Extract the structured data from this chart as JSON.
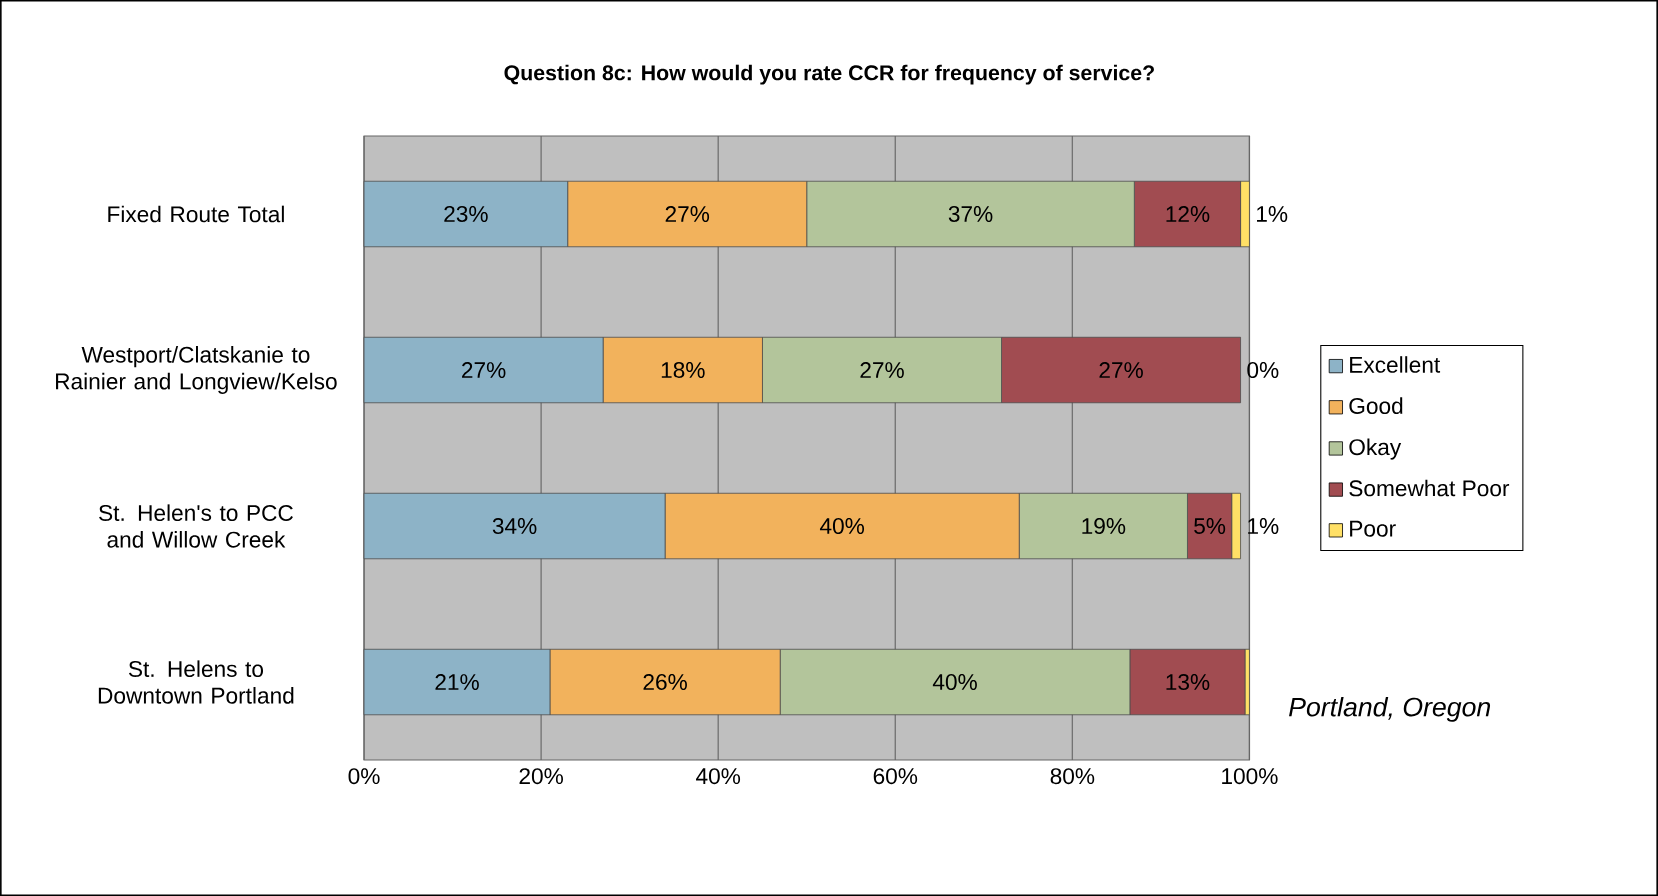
{
  "chart_data": {
    "type": "bar",
    "orientation": "horizontal",
    "stacked": true,
    "title": "Question 8c: How would you rate CCR for frequency of service?",
    "categories": [
      "Fixed Route Total",
      "Westport/Clatskanie to Rainier and Longview/Kelso",
      "St. Helen's to PCC and Willow Creek",
      "St. Helens to Downtown Portland"
    ],
    "series": [
      {
        "name": "Excellent",
        "color": "#8db3c7",
        "values": [
          23,
          27,
          34,
          21
        ],
        "value_labels": [
          "23%",
          "27%",
          "34%",
          "21%"
        ]
      },
      {
        "name": "Good",
        "color": "#f2b25c",
        "values": [
          27,
          18,
          40,
          26
        ],
        "value_labels": [
          "27%",
          "18%",
          "40%",
          "26%"
        ]
      },
      {
        "name": "Okay",
        "color": "#b3c59b",
        "values": [
          37,
          27,
          19,
          39.5
        ],
        "value_labels": [
          "37%",
          "27%",
          "19%",
          "40%"
        ]
      },
      {
        "name": "Somewhat Poor",
        "color": "#a14c51",
        "values": [
          12,
          27,
          5,
          13
        ],
        "value_labels": [
          "12%",
          "27%",
          "5%",
          "13%"
        ]
      },
      {
        "name": "Poor",
        "color": "#ffe066",
        "values": [
          1,
          0,
          1,
          0.5
        ],
        "value_labels": [
          "1%",
          "0%",
          "1%",
          null
        ]
      }
    ],
    "xlim": [
      0,
      100
    ],
    "xticks": [
      {
        "value": 0,
        "label": "0%"
      },
      {
        "value": 20,
        "label": "20%"
      },
      {
        "value": 40,
        "label": "40%"
      },
      {
        "value": 60,
        "label": "60%"
      },
      {
        "value": 80,
        "label": "80%"
      },
      {
        "value": 100,
        "label": "100%"
      }
    ],
    "grid": "x",
    "legend": "right",
    "annotations": [
      "Portland, Oregon"
    ]
  }
}
